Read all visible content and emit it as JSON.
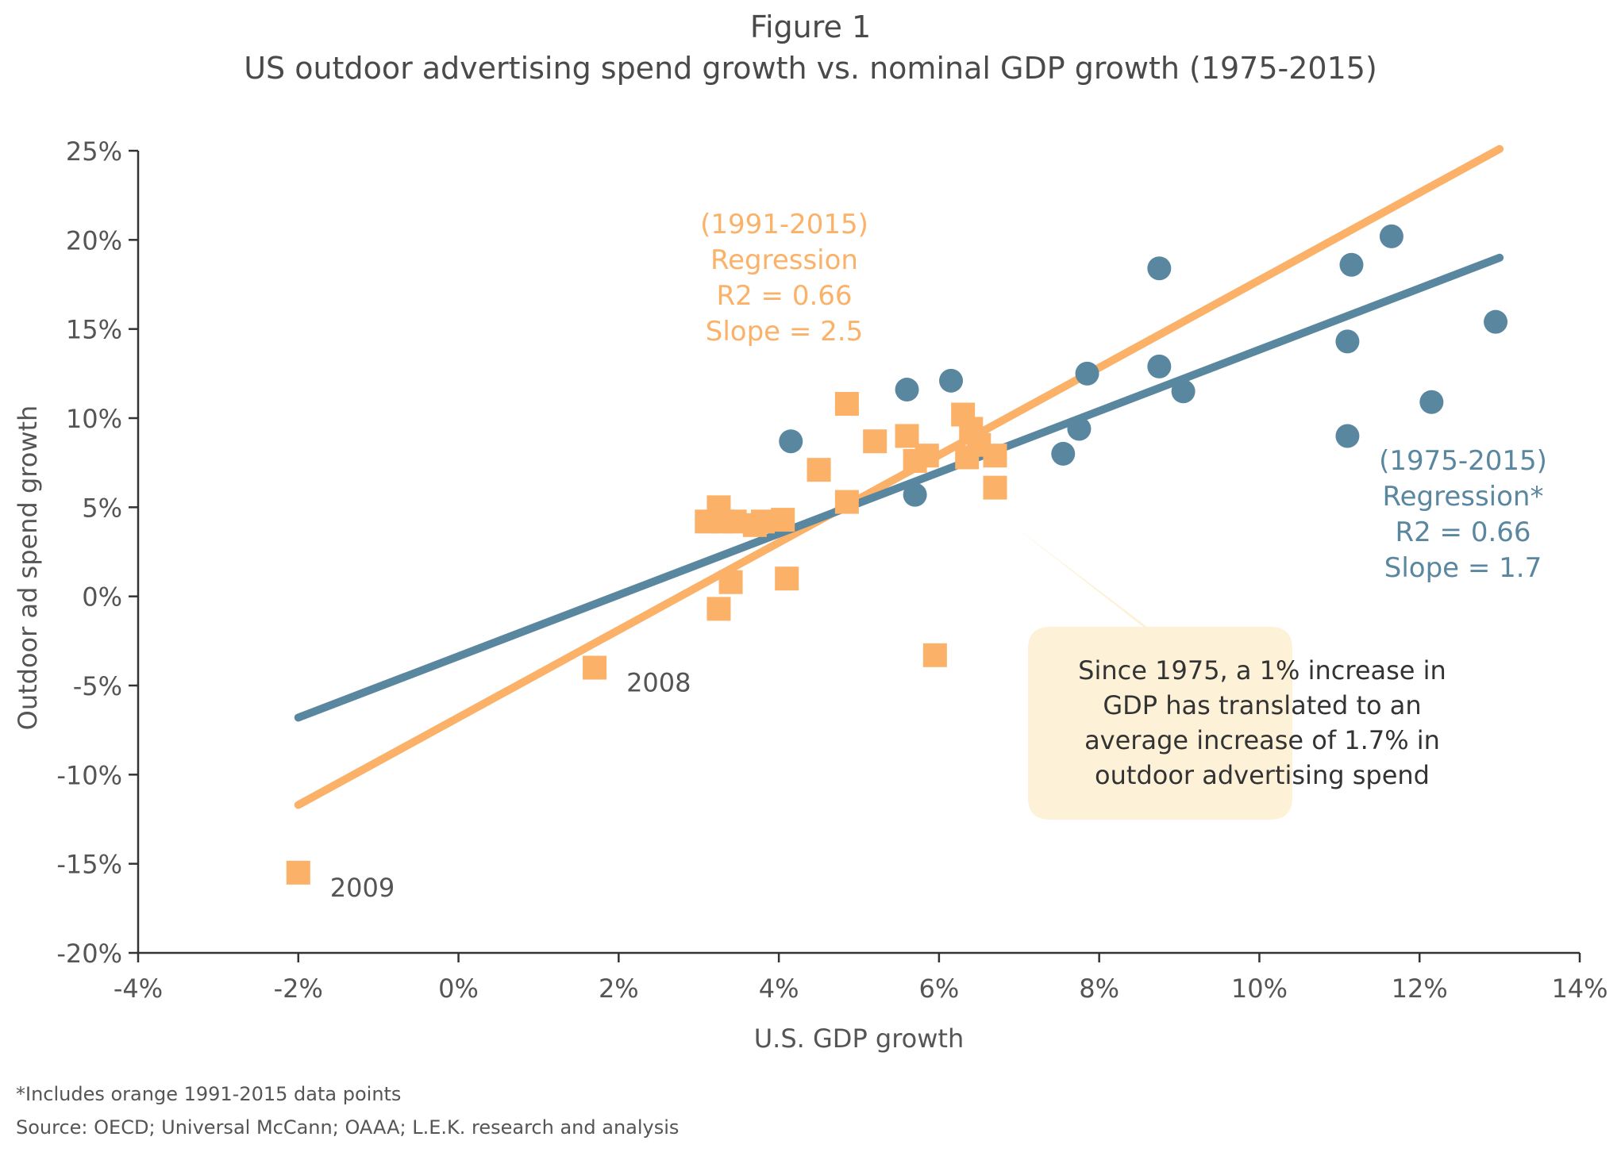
{
  "figure_label": "Figure 1",
  "chart_data": {
    "type": "scatter",
    "title": "US outdoor advertising spend growth vs. nominal GDP growth (1975-2015)",
    "xlabel": "U.S. GDP growth",
    "ylabel": "Outdoor ad spend growth",
    "xlim": [
      -4,
      14
    ],
    "ylim": [
      -20,
      25
    ],
    "x_ticks": [
      "-4%",
      "-2%",
      "0%",
      "2%",
      "4%",
      "6%",
      "8%",
      "10%",
      "12%",
      "14%"
    ],
    "y_ticks": [
      "25%",
      "20%",
      "15%",
      "10%",
      "5%",
      "0%",
      "-5%",
      "-10%",
      "-15%",
      "-20%"
    ],
    "grid": false,
    "series": [
      {
        "name": "1991-2015",
        "marker": "square",
        "color": "#fbb168",
        "points": [
          [
            -2.0,
            -15.5
          ],
          [
            1.7,
            -4.0
          ],
          [
            3.1,
            4.2
          ],
          [
            3.25,
            5.0
          ],
          [
            3.3,
            4.2
          ],
          [
            3.45,
            4.2
          ],
          [
            3.7,
            4.0
          ],
          [
            3.8,
            4.2
          ],
          [
            4.05,
            4.3
          ],
          [
            3.25,
            -0.7
          ],
          [
            3.4,
            0.8
          ],
          [
            4.1,
            1.0
          ],
          [
            4.5,
            7.1
          ],
          [
            4.85,
            10.8
          ],
          [
            4.85,
            5.3
          ],
          [
            5.2,
            8.7
          ],
          [
            5.6,
            9.0
          ],
          [
            5.7,
            7.6
          ],
          [
            5.85,
            7.9
          ],
          [
            5.95,
            -3.3
          ],
          [
            6.3,
            10.2
          ],
          [
            6.4,
            9.4
          ],
          [
            6.35,
            7.8
          ],
          [
            6.5,
            8.5
          ],
          [
            6.7,
            7.9
          ],
          [
            6.7,
            6.1
          ]
        ]
      },
      {
        "name": "1975-2015",
        "marker": "circle",
        "color": "#5a87a0",
        "points": [
          [
            4.15,
            8.7
          ],
          [
            5.6,
            11.6
          ],
          [
            5.7,
            5.7
          ],
          [
            6.15,
            12.1
          ],
          [
            7.55,
            8.0
          ],
          [
            7.75,
            9.4
          ],
          [
            7.85,
            12.5
          ],
          [
            8.75,
            18.4
          ],
          [
            8.75,
            12.9
          ],
          [
            9.05,
            11.5
          ],
          [
            11.1,
            14.3
          ],
          [
            11.1,
            9.0
          ],
          [
            11.15,
            18.6
          ],
          [
            11.65,
            20.2
          ],
          [
            12.15,
            10.9
          ],
          [
            12.95,
            15.4
          ]
        ]
      }
    ],
    "regressions": [
      {
        "name": "1991-2015",
        "color": "#fbb168",
        "from": [
          -2,
          -11.7
        ],
        "to": [
          13,
          25.1
        ],
        "label_lines": [
          "(1991-2015)",
          "Regression",
          "R2 = 0.66",
          "Slope = 2.5"
        ]
      },
      {
        "name": "1975-2015",
        "color": "#5a87a0",
        "from": [
          -2,
          -6.8
        ],
        "to": [
          13,
          19.0
        ],
        "label_lines": [
          "(1975-2015)",
          "Regression*",
          "R2 = 0.66",
          "Slope = 1.7"
        ]
      }
    ],
    "point_labels": [
      {
        "text": "2008",
        "x": 1.7,
        "y": -4.0
      },
      {
        "text": "2009",
        "x": -2.0,
        "y": -15.5
      }
    ],
    "callout": {
      "lines": [
        "Since 1975, a 1% increase in",
        "GDP has translated to an",
        "average increase of 1.7% in",
        "outdoor advertising spend"
      ],
      "fill": "#fdf1d8"
    }
  },
  "footnotes": [
    "*Includes orange 1991-2015 data points",
    "Source: OECD; Universal McCann; OAAA; L.E.K. research and analysis"
  ]
}
